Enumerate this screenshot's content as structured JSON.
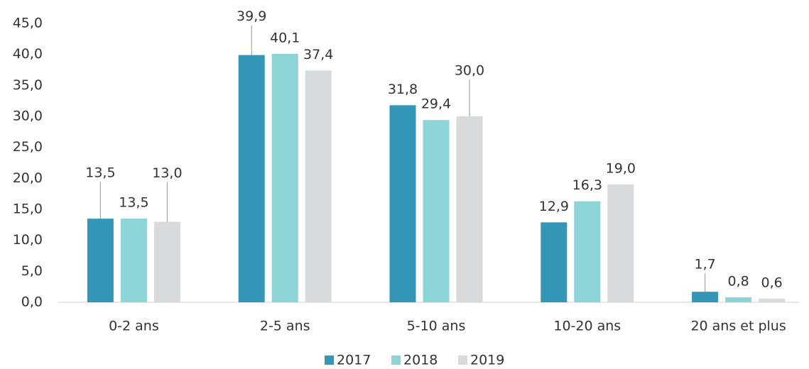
{
  "chart_data": {
    "type": "bar",
    "categories": [
      "0-2 ans",
      "2-5 ans",
      "5-10 ans",
      "10-20 ans",
      "20 ans et plus"
    ],
    "series": [
      {
        "name": "2017",
        "color": "#3597b8",
        "values": [
          13.5,
          39.9,
          31.8,
          12.9,
          1.7
        ],
        "value_labels": [
          "13,5",
          "39,9",
          "31,8",
          "12,9",
          "1,7"
        ]
      },
      {
        "name": "2018",
        "color": "#8dd4d6",
        "values": [
          13.5,
          40.1,
          29.4,
          16.3,
          0.8
        ],
        "value_labels": [
          "13,5",
          "40,1",
          "29,4",
          "16,3",
          "0,8"
        ]
      },
      {
        "name": "2019",
        "color": "#d9dadb",
        "values": [
          13.0,
          37.4,
          30.0,
          19.0,
          0.6
        ],
        "value_labels": [
          "13,0",
          "37,4",
          "30,0",
          "19,0",
          "0,6"
        ]
      }
    ],
    "ylim": [
      0,
      45
    ],
    "yticks": [
      {
        "value": 0,
        "label": "0,0"
      },
      {
        "value": 5,
        "label": "5,0"
      },
      {
        "value": 10,
        "label": "10,0"
      },
      {
        "value": 15,
        "label": "15,0"
      },
      {
        "value": 20,
        "label": "20,0"
      },
      {
        "value": 25,
        "label": "25,0"
      },
      {
        "value": 30,
        "label": "30,0"
      },
      {
        "value": 35,
        "label": "35,0"
      },
      {
        "value": 40,
        "label": "40,0"
      },
      {
        "value": 45,
        "label": "45,0"
      }
    ],
    "legend": "bottom"
  }
}
